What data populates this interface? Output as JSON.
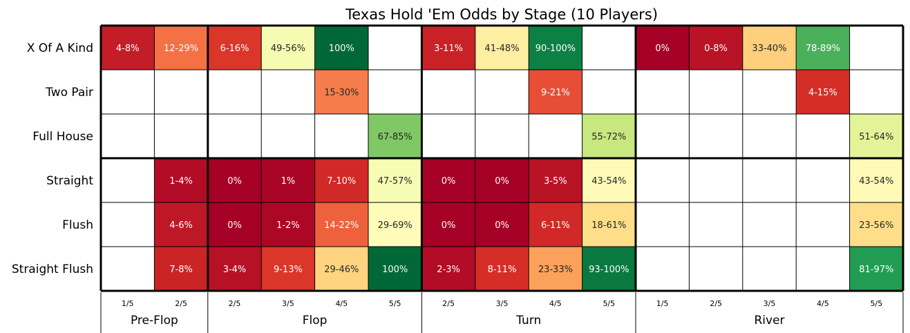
{
  "chart_data": {
    "type": "heatmap",
    "title": "Texas Hold 'Em Odds by Stage (10 Players)",
    "rows": [
      "X Of A Kind",
      "Two Pair",
      "Full House",
      "Straight",
      "Flush",
      "Straight Flush"
    ],
    "columns": [
      {
        "stage": "Pre-Flop",
        "label": "1/5"
      },
      {
        "stage": "Pre-Flop",
        "label": "2/5"
      },
      {
        "stage": "Flop",
        "label": "2/5"
      },
      {
        "stage": "Flop",
        "label": "3/5"
      },
      {
        "stage": "Flop",
        "label": "4/5"
      },
      {
        "stage": "Flop",
        "label": "5/5"
      },
      {
        "stage": "Turn",
        "label": "2/5"
      },
      {
        "stage": "Turn",
        "label": "3/5"
      },
      {
        "stage": "Turn",
        "label": "4/5"
      },
      {
        "stage": "Turn",
        "label": "5/5"
      },
      {
        "stage": "River",
        "label": "1/5"
      },
      {
        "stage": "River",
        "label": "2/5"
      },
      {
        "stage": "River",
        "label": "3/5"
      },
      {
        "stage": "River",
        "label": "4/5"
      },
      {
        "stage": "River",
        "label": "5/5"
      }
    ],
    "stages": [
      {
        "label": "Pre-Flop",
        "span": 2
      },
      {
        "label": "Flop",
        "span": 4
      },
      {
        "label": "Turn",
        "span": 4
      },
      {
        "label": "River",
        "span": 5
      }
    ],
    "cells": [
      [
        {
          "text": "4-8%",
          "value": 6
        },
        {
          "text": "12-29%",
          "value": 20.5
        },
        {
          "text": "6-16%",
          "value": 11
        },
        {
          "text": "49-56%",
          "value": 52.5
        },
        {
          "text": "100%",
          "value": 100
        },
        null,
        {
          "text": "3-11%",
          "value": 7
        },
        {
          "text": "41-48%",
          "value": 44.5
        },
        {
          "text": "90-100%",
          "value": 95
        },
        null,
        {
          "text": "0%",
          "value": 0
        },
        {
          "text": "0-8%",
          "value": 4
        },
        {
          "text": "33-40%",
          "value": 36.5
        },
        {
          "text": "78-89%",
          "value": 83.5
        },
        null
      ],
      [
        null,
        null,
        null,
        null,
        {
          "text": "15-30%",
          "value": 22.5
        },
        null,
        null,
        null,
        {
          "text": "9-21%",
          "value": 15
        },
        null,
        null,
        null,
        null,
        {
          "text": "4-15%",
          "value": 9.5
        },
        null
      ],
      [
        null,
        null,
        null,
        null,
        null,
        {
          "text": "67-85%",
          "value": 76
        },
        null,
        null,
        null,
        {
          "text": "55-72%",
          "value": 63.5
        },
        null,
        null,
        null,
        null,
        {
          "text": "51-64%",
          "value": 57.5
        }
      ],
      [
        null,
        {
          "text": "1-4%",
          "value": 2.5
        },
        {
          "text": "0%",
          "value": 0
        },
        {
          "text": "1%",
          "value": 1
        },
        {
          "text": "7-10%",
          "value": 8.5
        },
        {
          "text": "47-57%",
          "value": 52
        },
        {
          "text": "0%",
          "value": 0
        },
        {
          "text": "0%",
          "value": 0
        },
        {
          "text": "3-5%",
          "value": 4
        },
        {
          "text": "43-54%",
          "value": 48.5
        },
        null,
        null,
        null,
        null,
        {
          "text": "43-54%",
          "value": 48.5
        }
      ],
      [
        null,
        {
          "text": "4-6%",
          "value": 5
        },
        {
          "text": "0%",
          "value": 0
        },
        {
          "text": "1-2%",
          "value": 1.5
        },
        {
          "text": "14-22%",
          "value": 18
        },
        {
          "text": "29-69%",
          "value": 49
        },
        {
          "text": "0%",
          "value": 0
        },
        {
          "text": "0%",
          "value": 0
        },
        {
          "text": "6-11%",
          "value": 8.5
        },
        {
          "text": "18-61%",
          "value": 39.5
        },
        null,
        null,
        null,
        null,
        {
          "text": "23-56%",
          "value": 39.5
        }
      ],
      [
        null,
        {
          "text": "7-8%",
          "value": 7.5
        },
        {
          "text": "3-4%",
          "value": 3.5
        },
        {
          "text": "9-13%",
          "value": 11
        },
        {
          "text": "29-46%",
          "value": 37.5
        },
        {
          "text": "100%",
          "value": 100
        },
        {
          "text": "2-3%",
          "value": 2.5
        },
        {
          "text": "8-11%",
          "value": 9.5
        },
        {
          "text": "23-33%",
          "value": 28
        },
        {
          "text": "93-100%",
          "value": 96.5
        },
        null,
        null,
        null,
        null,
        {
          "text": "81-97%",
          "value": 89
        }
      ]
    ],
    "colormap": "RdYlGn",
    "value_range": [
      0,
      100
    ]
  }
}
